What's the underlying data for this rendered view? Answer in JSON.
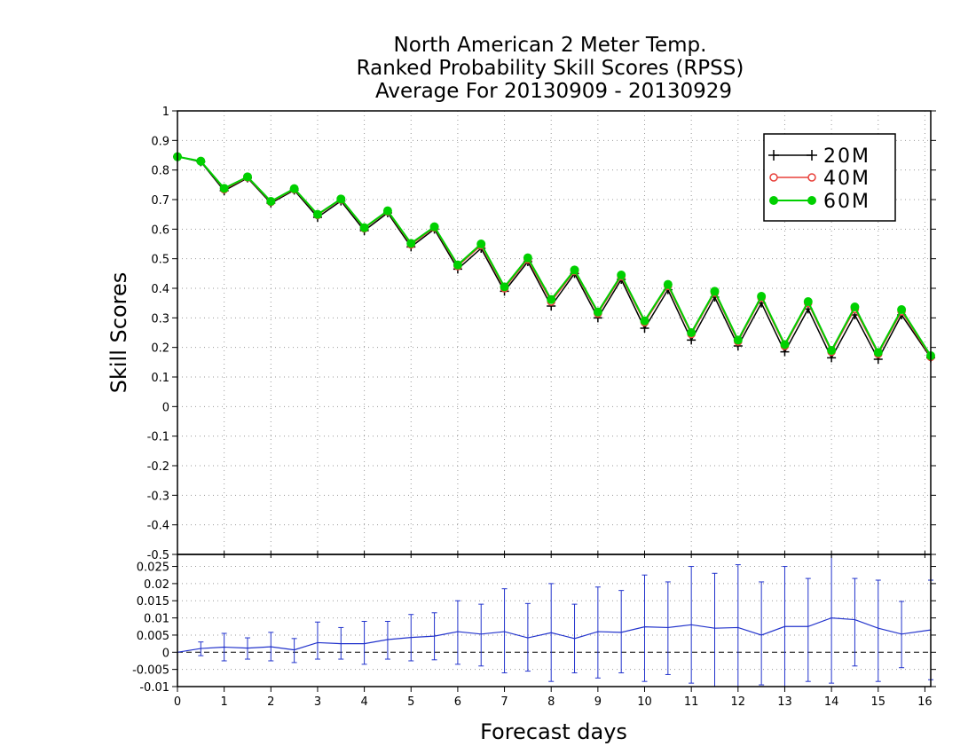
{
  "chart_data": [
    {
      "type": "line",
      "title": [
        "North American 2 Meter Temp.",
        "Ranked Probability Skill Scores (RPSS)",
        "Average For 20130909 - 20130929"
      ],
      "xlabel": "Forecast days",
      "ylabel": "Skill Scores",
      "xlim": [
        0,
        16.125
      ],
      "ylim": [
        -0.5,
        1
      ],
      "yticks": [
        "1",
        "0.9",
        "0.8",
        "0.7",
        "0.6",
        "0.5",
        "0.4",
        "0.3",
        "0.2",
        "0.1",
        "0",
        "-0.1",
        "-0.2",
        "-0.3",
        "-0.4",
        "-0.5"
      ],
      "grid": true,
      "legend_position": "top-right",
      "x": [
        0,
        0.5,
        1,
        1.5,
        2,
        2.5,
        3,
        3.5,
        4,
        4.5,
        5,
        5.5,
        6,
        6.5,
        7,
        7.5,
        8,
        8.5,
        9,
        9.5,
        10,
        10.5,
        11,
        11.5,
        12,
        12.5,
        13,
        13.5,
        14,
        14.5,
        15,
        15.5,
        16.125
      ],
      "series": [
        {
          "name": "20M",
          "color": "#000000",
          "marker": "plus",
          "values": [
            0.845,
            0.828,
            0.73,
            0.773,
            0.688,
            0.732,
            0.64,
            0.695,
            0.595,
            0.655,
            0.54,
            0.6,
            0.465,
            0.535,
            0.39,
            0.49,
            0.34,
            0.45,
            0.3,
            0.43,
            0.265,
            0.395,
            0.225,
            0.37,
            0.205,
            0.35,
            0.185,
            0.33,
            0.165,
            0.31,
            0.16,
            0.31,
            0.165
          ]
        },
        {
          "name": "40M",
          "color": "#e8403a",
          "marker": "open-circle",
          "values": [
            0.845,
            0.83,
            0.735,
            0.775,
            0.692,
            0.735,
            0.648,
            0.7,
            0.603,
            0.66,
            0.548,
            0.605,
            0.475,
            0.545,
            0.4,
            0.498,
            0.355,
            0.458,
            0.315,
            0.44,
            0.285,
            0.408,
            0.245,
            0.385,
            0.22,
            0.368,
            0.205,
            0.35,
            0.185,
            0.33,
            0.178,
            0.322,
            0.168
          ]
        },
        {
          "name": "60M",
          "color": "#00d000",
          "marker": "filled-circle",
          "values": [
            0.845,
            0.83,
            0.738,
            0.777,
            0.694,
            0.737,
            0.65,
            0.702,
            0.605,
            0.662,
            0.552,
            0.608,
            0.479,
            0.55,
            0.405,
            0.503,
            0.362,
            0.462,
            0.32,
            0.445,
            0.29,
            0.413,
            0.25,
            0.39,
            0.225,
            0.373,
            0.21,
            0.355,
            0.19,
            0.337,
            0.183,
            0.328,
            0.172
          ]
        }
      ]
    },
    {
      "type": "line",
      "xlabel": "",
      "ylabel": "",
      "xlim": [
        0,
        16.125
      ],
      "ylim": [
        -0.01,
        0.0285
      ],
      "xticks": [
        "0",
        "1",
        "2",
        "3",
        "4",
        "5",
        "6",
        "7",
        "8",
        "9",
        "10",
        "11",
        "12",
        "13",
        "14",
        "15",
        "16"
      ],
      "yticks": [
        "0.025",
        "0.02",
        "0.015",
        "0.01",
        "0.005",
        "0",
        "-0.005",
        "-0.01"
      ],
      "grid": true,
      "zero_line": "dashed",
      "x": [
        0,
        0.5,
        1,
        1.5,
        2,
        2.5,
        3,
        3.5,
        4,
        4.5,
        5,
        5.5,
        6,
        6.5,
        7,
        7.5,
        8,
        8.5,
        9,
        9.5,
        10,
        10.5,
        11,
        11.5,
        12,
        12.5,
        13,
        13.5,
        14,
        14.5,
        15,
        15.5,
        16.125
      ],
      "series": [
        {
          "name": "",
          "color": "#2233cc",
          "error_bars": true,
          "values": [
            0,
            0.0011,
            0.0015,
            0.0012,
            0.0016,
            0.0007,
            0.0028,
            0.0025,
            0.0025,
            0.0037,
            0.0043,
            0.0047,
            0.006,
            0.0053,
            0.006,
            0.0042,
            0.0057,
            0.004,
            0.006,
            0.0058,
            0.0074,
            0.0072,
            0.008,
            0.007,
            0.0072,
            0.005,
            0.0075,
            0.0075,
            0.01,
            0.0095,
            0.007,
            0.0053,
            0.0065
          ],
          "lower": [
            0,
            -0.001,
            -0.0025,
            -0.002,
            -0.0025,
            -0.003,
            -0.002,
            -0.002,
            -0.0035,
            -0.002,
            -0.0025,
            -0.0022,
            -0.0035,
            -0.004,
            -0.006,
            -0.0055,
            -0.0085,
            -0.006,
            -0.0075,
            -0.006,
            -0.0085,
            -0.0065,
            -0.009,
            -0.01,
            -0.01,
            -0.0095,
            -0.01,
            -0.0085,
            -0.009,
            -0.004,
            -0.0085,
            -0.0045,
            -0.008
          ],
          "upper": [
            0,
            0.003,
            0.0055,
            0.0042,
            0.0058,
            0.004,
            0.0088,
            0.0072,
            0.009,
            0.009,
            0.011,
            0.0115,
            0.015,
            0.014,
            0.0185,
            0.0142,
            0.02,
            0.014,
            0.019,
            0.018,
            0.0225,
            0.0205,
            0.025,
            0.023,
            0.0255,
            0.0205,
            0.025,
            0.0215,
            0.029,
            0.0215,
            0.021,
            0.0148,
            0.021
          ]
        }
      ]
    }
  ]
}
